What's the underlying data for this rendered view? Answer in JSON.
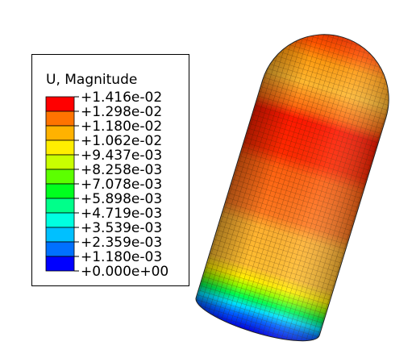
{
  "legend": {
    "title": "U, Magnitude",
    "labels": [
      "+1.416e-02",
      "+1.298e-02",
      "+1.180e-02",
      "+1.062e-02",
      "+9.437e-03",
      "+8.258e-03",
      "+7.078e-03",
      "+5.898e-03",
      "+4.719e-03",
      "+3.539e-03",
      "+2.359e-03",
      "+1.180e-03",
      "+0.000e+00"
    ],
    "colors": [
      "#ff0000",
      "#ff7300",
      "#ffb200",
      "#ffee00",
      "#c8ff00",
      "#5cff00",
      "#00ff1e",
      "#00ff8a",
      "#00ffe0",
      "#00c0ff",
      "#0070ff",
      "#0000ff"
    ]
  }
}
